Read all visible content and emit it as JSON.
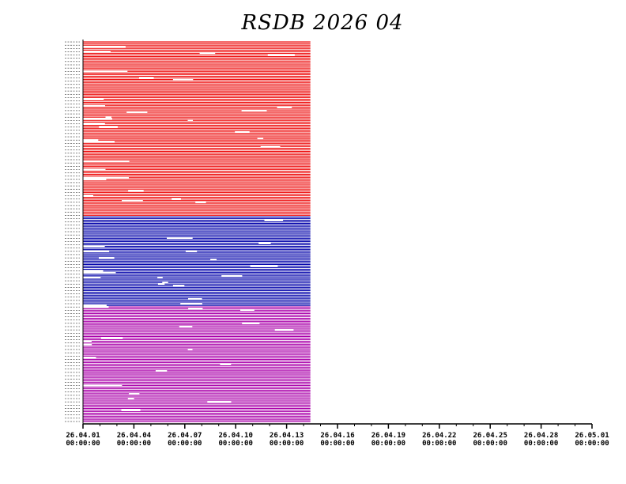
{
  "chart_data": {
    "type": "timeline",
    "title": "RSDB  2026  04",
    "x_ticks": [
      {
        "date": "26.04.01",
        "time": "00:00:00"
      },
      {
        "date": "26.04.04",
        "time": "00:00:00"
      },
      {
        "date": "26.04.07",
        "time": "00:00:00"
      },
      {
        "date": "26.04.10",
        "time": "00:00:00"
      },
      {
        "date": "26.04.13",
        "time": "00:00:00"
      },
      {
        "date": "26.04.16",
        "time": "00:00:00"
      },
      {
        "date": "26.04.19",
        "time": "00:00:00"
      },
      {
        "date": "26.04.22",
        "time": "00:00:00"
      },
      {
        "date": "26.04.25",
        "time": "00:00:00"
      },
      {
        "date": "26.04.28",
        "time": "00:00:00"
      },
      {
        "date": "26.05.01",
        "time": "00:00:00"
      }
    ],
    "xlim": [
      "2026-04-01",
      "2026-05-01"
    ],
    "data_end": "2026-04-14.4",
    "series": [
      {
        "color": "#ee1111",
        "rows": 107
      },
      {
        "color": "#0000aa",
        "rows": 55
      },
      {
        "color": "#aa00aa",
        "rows": 71
      }
    ]
  }
}
